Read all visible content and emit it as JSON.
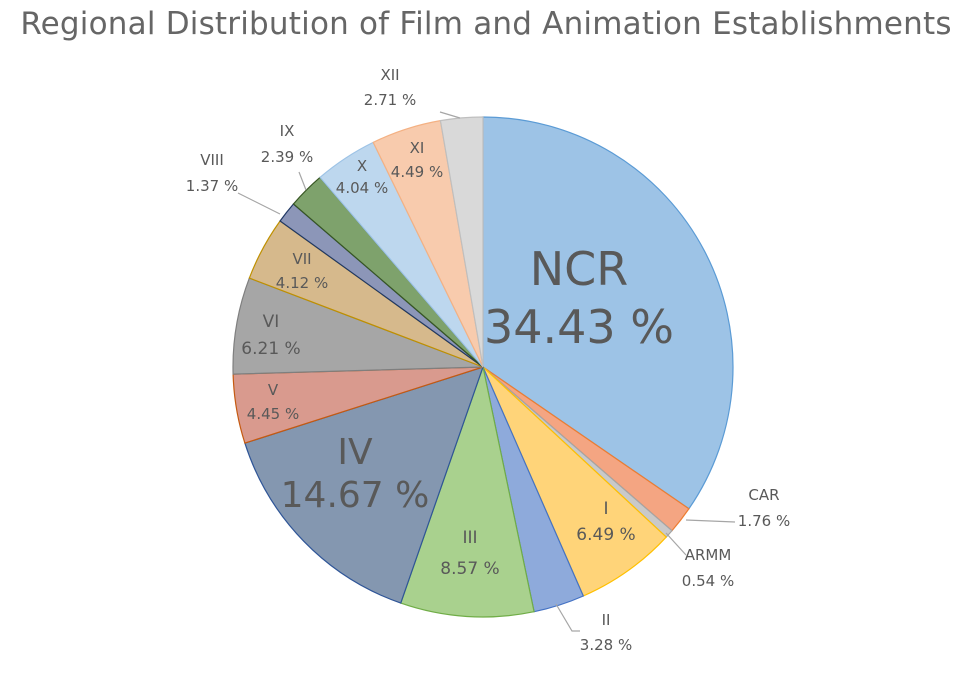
{
  "chart_data": {
    "type": "pie",
    "title": "Regional Distribution of Film and Animation Establishments",
    "slices": [
      {
        "label": "NCR",
        "value": 34.43,
        "text": "34.43 %",
        "color": "#9dc3e6",
        "stroke": "#5b9bd5"
      },
      {
        "label": "CAR",
        "value": 1.76,
        "text": "1.76 %",
        "color": "#f4a582",
        "stroke": "#ed7d31"
      },
      {
        "label": "ARMM",
        "value": 0.54,
        "text": "0.54 %",
        "color": "#c9c9c9",
        "stroke": "#a5a5a5"
      },
      {
        "label": "I",
        "value": 6.49,
        "text": "6.49 %",
        "color": "#ffd479",
        "stroke": "#ffc000"
      },
      {
        "label": "II",
        "value": 3.28,
        "text": "3.28 %",
        "color": "#8eaadb",
        "stroke": "#4472c4"
      },
      {
        "label": "III",
        "value": 8.57,
        "text": "8.57 %",
        "color": "#a9d18e",
        "stroke": "#70ad47"
      },
      {
        "label": "IV",
        "value": 14.67,
        "text": "14.67 %",
        "color": "#8497b0",
        "stroke": "#2f5597"
      },
      {
        "label": "V",
        "value": 4.45,
        "text": "4.45 %",
        "color": "#d99a8e",
        "stroke": "#c55a11"
      },
      {
        "label": "VI",
        "value": 6.21,
        "text": "6.21 %",
        "color": "#a6a6a6",
        "stroke": "#7f7f7f"
      },
      {
        "label": "VII",
        "value": 4.12,
        "text": "4.12 %",
        "color": "#d6b98c",
        "stroke": "#bf9000"
      },
      {
        "label": "VIII",
        "value": 1.37,
        "text": "1.37 %",
        "color": "#8c96b8",
        "stroke": "#203864"
      },
      {
        "label": "IX",
        "value": 2.39,
        "text": "2.39 %",
        "color": "#7ea26c",
        "stroke": "#375623"
      },
      {
        "label": "X",
        "value": 4.04,
        "text": "4.04 %",
        "color": "#bdd7ee",
        "stroke": "#9dc3e6"
      },
      {
        "label": "XI",
        "value": 4.49,
        "text": "4.49 %",
        "color": "#f8cbad",
        "stroke": "#f4b183"
      },
      {
        "label": "XII",
        "value": 2.71,
        "text": "2.71 %",
        "color": "#d9d9d9",
        "stroke": "#bfbfbf"
      }
    ],
    "legend": "none"
  }
}
